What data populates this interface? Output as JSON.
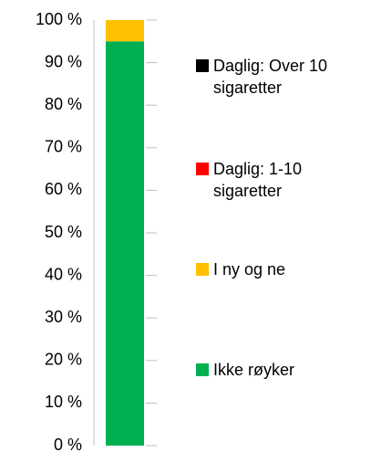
{
  "chart_data": {
    "type": "stacked_bar",
    "categories": [
      null
    ],
    "series": [
      {
        "name": "Ikke røyker",
        "color": "#00b050",
        "values": [
          95
        ]
      },
      {
        "name": "I ny og ne",
        "color": "#ffc000",
        "values": [
          5
        ]
      },
      {
        "name": "Daglig: 1-10 sigaretter",
        "color": "#ff0000",
        "values": [
          0
        ]
      },
      {
        "name": "Daglig: Over 10 sigaretter",
        "color": "#000000",
        "values": [
          0
        ]
      }
    ],
    "ylim": [
      0,
      100
    ],
    "yticks": [
      {
        "value": 0,
        "label": "0 %"
      },
      {
        "value": 10,
        "label": "10 %"
      },
      {
        "value": 20,
        "label": "20 %"
      },
      {
        "value": 30,
        "label": "30 %"
      },
      {
        "value": 40,
        "label": "40 %"
      },
      {
        "value": 50,
        "label": "50 %"
      },
      {
        "value": 60,
        "label": "60 %"
      },
      {
        "value": 70,
        "label": "70 %"
      },
      {
        "value": 80,
        "label": "80 %"
      },
      {
        "value": 90,
        "label": "90 %"
      },
      {
        "value": 100,
        "label": "100 %"
      }
    ],
    "legend": "right"
  }
}
